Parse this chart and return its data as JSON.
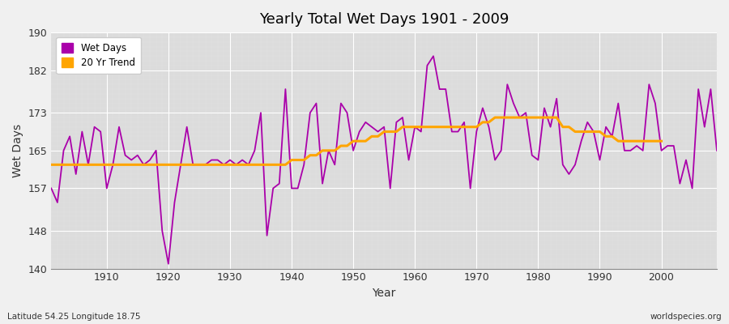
{
  "title": "Yearly Total Wet Days 1901 - 2009",
  "xlabel": "Year",
  "ylabel": "Wet Days",
  "subtitle": "Latitude 54.25 Longitude 18.75",
  "watermark": "worldspecies.org",
  "ylim": [
    140,
    190
  ],
  "xlim": [
    1901,
    2009
  ],
  "yticks": [
    140,
    148,
    157,
    165,
    173,
    182,
    190
  ],
  "xticks": [
    1910,
    1920,
    1930,
    1940,
    1950,
    1960,
    1970,
    1980,
    1990,
    2000
  ],
  "wet_days_color": "#AA00AA",
  "trend_color": "#FFA500",
  "plot_bg_color": "#DCDCDC",
  "fig_bg_color": "#F0F0F0",
  "legend_labels": [
    "Wet Days",
    "20 Yr Trend"
  ],
  "wet_days": {
    "1901": 157,
    "1902": 154,
    "1903": 165,
    "1904": 168,
    "1905": 160,
    "1906": 169,
    "1907": 162,
    "1908": 170,
    "1909": 169,
    "1910": 157,
    "1911": 162,
    "1912": 170,
    "1913": 164,
    "1914": 163,
    "1915": 164,
    "1916": 162,
    "1917": 163,
    "1918": 165,
    "1919": 148,
    "1920": 141,
    "1921": 154,
    "1922": 162,
    "1923": 170,
    "1924": 162,
    "1925": 162,
    "1926": 162,
    "1927": 163,
    "1928": 163,
    "1929": 162,
    "1930": 163,
    "1931": 162,
    "1932": 163,
    "1933": 162,
    "1934": 165,
    "1935": 173,
    "1936": 147,
    "1937": 157,
    "1938": 158,
    "1939": 178,
    "1940": 157,
    "1941": 157,
    "1942": 162,
    "1943": 173,
    "1944": 175,
    "1945": 158,
    "1946": 165,
    "1947": 162,
    "1948": 175,
    "1949": 173,
    "1950": 165,
    "1951": 169,
    "1952": 171,
    "1953": 170,
    "1954": 169,
    "1955": 170,
    "1956": 157,
    "1957": 171,
    "1958": 172,
    "1959": 163,
    "1960": 170,
    "1961": 169,
    "1962": 183,
    "1963": 185,
    "1964": 178,
    "1965": 178,
    "1966": 169,
    "1967": 169,
    "1968": 171,
    "1969": 157,
    "1970": 169,
    "1971": 174,
    "1972": 170,
    "1973": 163,
    "1974": 165,
    "1975": 179,
    "1976": 175,
    "1977": 172,
    "1978": 173,
    "1979": 164,
    "1980": 163,
    "1981": 174,
    "1982": 170,
    "1983": 176,
    "1984": 162,
    "1985": 160,
    "1986": 162,
    "1987": 167,
    "1988": 171,
    "1989": 169,
    "1990": 163,
    "1991": 170,
    "1992": 168,
    "1993": 175,
    "1994": 165,
    "1995": 165,
    "1996": 166,
    "1997": 165,
    "1998": 179,
    "1999": 175,
    "2000": 165,
    "2001": 166,
    "2002": 166,
    "2003": 158,
    "2004": 163,
    "2005": 157,
    "2006": 178,
    "2007": 170,
    "2008": 178,
    "2009": 165
  },
  "trend": {
    "1901": 162,
    "1902": 162,
    "1903": 162,
    "1904": 162,
    "1905": 162,
    "1906": 162,
    "1907": 162,
    "1908": 162,
    "1909": 162,
    "1910": 162,
    "1911": 162,
    "1912": 162,
    "1913": 162,
    "1914": 162,
    "1915": 162,
    "1916": 162,
    "1917": 162,
    "1918": 162,
    "1919": 162,
    "1920": 162,
    "1921": 162,
    "1922": 162,
    "1923": 162,
    "1924": 162,
    "1925": 162,
    "1926": 162,
    "1927": 162,
    "1928": 162,
    "1929": 162,
    "1930": 162,
    "1931": 162,
    "1932": 162,
    "1933": 162,
    "1934": 162,
    "1935": 162,
    "1936": 162,
    "1937": 162,
    "1938": 162,
    "1939": 162,
    "1940": 163,
    "1941": 163,
    "1942": 163,
    "1943": 164,
    "1944": 164,
    "1945": 165,
    "1946": 165,
    "1947": 165,
    "1948": 166,
    "1949": 166,
    "1950": 167,
    "1951": 167,
    "1952": 167,
    "1953": 168,
    "1954": 168,
    "1955": 169,
    "1956": 169,
    "1957": 169,
    "1958": 170,
    "1959": 170,
    "1960": 170,
    "1961": 170,
    "1962": 170,
    "1963": 170,
    "1964": 170,
    "1965": 170,
    "1966": 170,
    "1967": 170,
    "1968": 170,
    "1969": 170,
    "1970": 170,
    "1971": 171,
    "1972": 171,
    "1973": 172,
    "1974": 172,
    "1975": 172,
    "1976": 172,
    "1977": 172,
    "1978": 172,
    "1979": 172,
    "1980": 172,
    "1981": 172,
    "1982": 172,
    "1983": 172,
    "1984": 170,
    "1985": 170,
    "1986": 169,
    "1987": 169,
    "1988": 169,
    "1989": 169,
    "1990": 169,
    "1991": 168,
    "1992": 168,
    "1993": 167,
    "1994": 167,
    "1995": 167,
    "1996": 167,
    "1997": 167,
    "1998": 167,
    "1999": 167,
    "2000": 167
  }
}
